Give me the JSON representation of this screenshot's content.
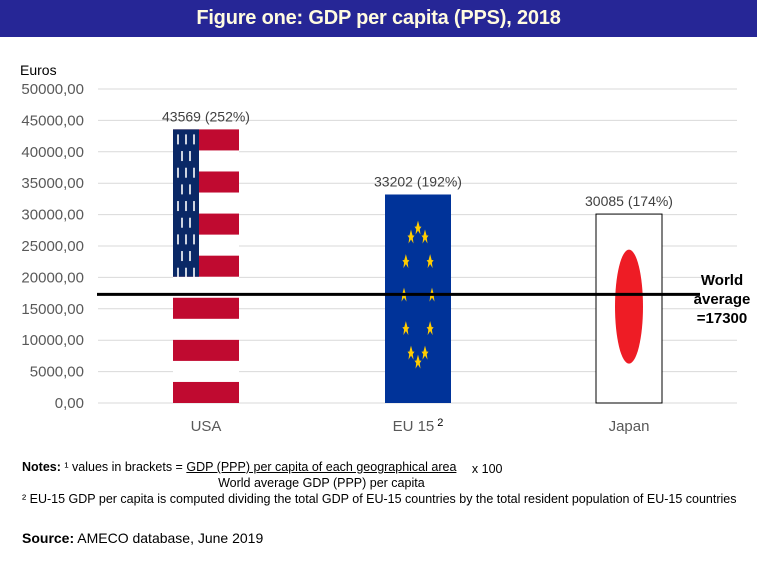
{
  "header": {
    "title": "Figure one: GDP per capita (PPS), 2018"
  },
  "chart_data": {
    "type": "bar",
    "title": "Figure one: GDP per capita (PPS), 2018",
    "ylabel": "Euros",
    "xlabel": "",
    "ylim": [
      0,
      50000
    ],
    "yticks": [
      0,
      5000,
      10000,
      15000,
      20000,
      25000,
      30000,
      35000,
      40000,
      45000,
      50000
    ],
    "ytick_labels": [
      "0,00",
      "5000,00",
      "10000,00",
      "15000,00",
      "20000,00",
      "25000,00",
      "30000,00",
      "35000,00",
      "40000,00",
      "45000,00",
      "50000,00"
    ],
    "grid": true,
    "categories": [
      "USA",
      "EU 15",
      "Japan"
    ],
    "category_superscripts": [
      "",
      "2",
      ""
    ],
    "values": [
      43569,
      33202,
      30085
    ],
    "data_labels": [
      "43569 (252%)",
      "33202 (192%)",
      "30085 (174%)"
    ],
    "percent_of_world_average": [
      252,
      192,
      174
    ],
    "bar_styles": [
      "usa-flag",
      "eu-flag",
      "japan-flag"
    ],
    "reference_line": {
      "value": 17300,
      "label_lines": [
        "World",
        "average",
        "=17300"
      ]
    },
    "colors": {
      "usa_red": "#c00a30",
      "usa_blue": "#0a2866",
      "eu_blue": "#003399",
      "eu_star": "#ffcc00",
      "japan_red": "#ee1c25",
      "grid": "#d9d9d9",
      "reference_line": "#000000"
    }
  },
  "notes": {
    "label": "Notes:",
    "note1_prefix": "¹ values in brackets =",
    "note1_numerator": "GDP (PPP) per capita of each geographical area",
    "note1_denominator": "World average GDP (PPP) per capita",
    "note1_multiplier": "x 100",
    "note2": "² EU-15 GDP per capita is computed dividing the total GDP of EU-15 countries by the total resident population of EU-15 countries"
  },
  "source": {
    "label": "Source:",
    "text": "AMECO database, June 2019"
  }
}
